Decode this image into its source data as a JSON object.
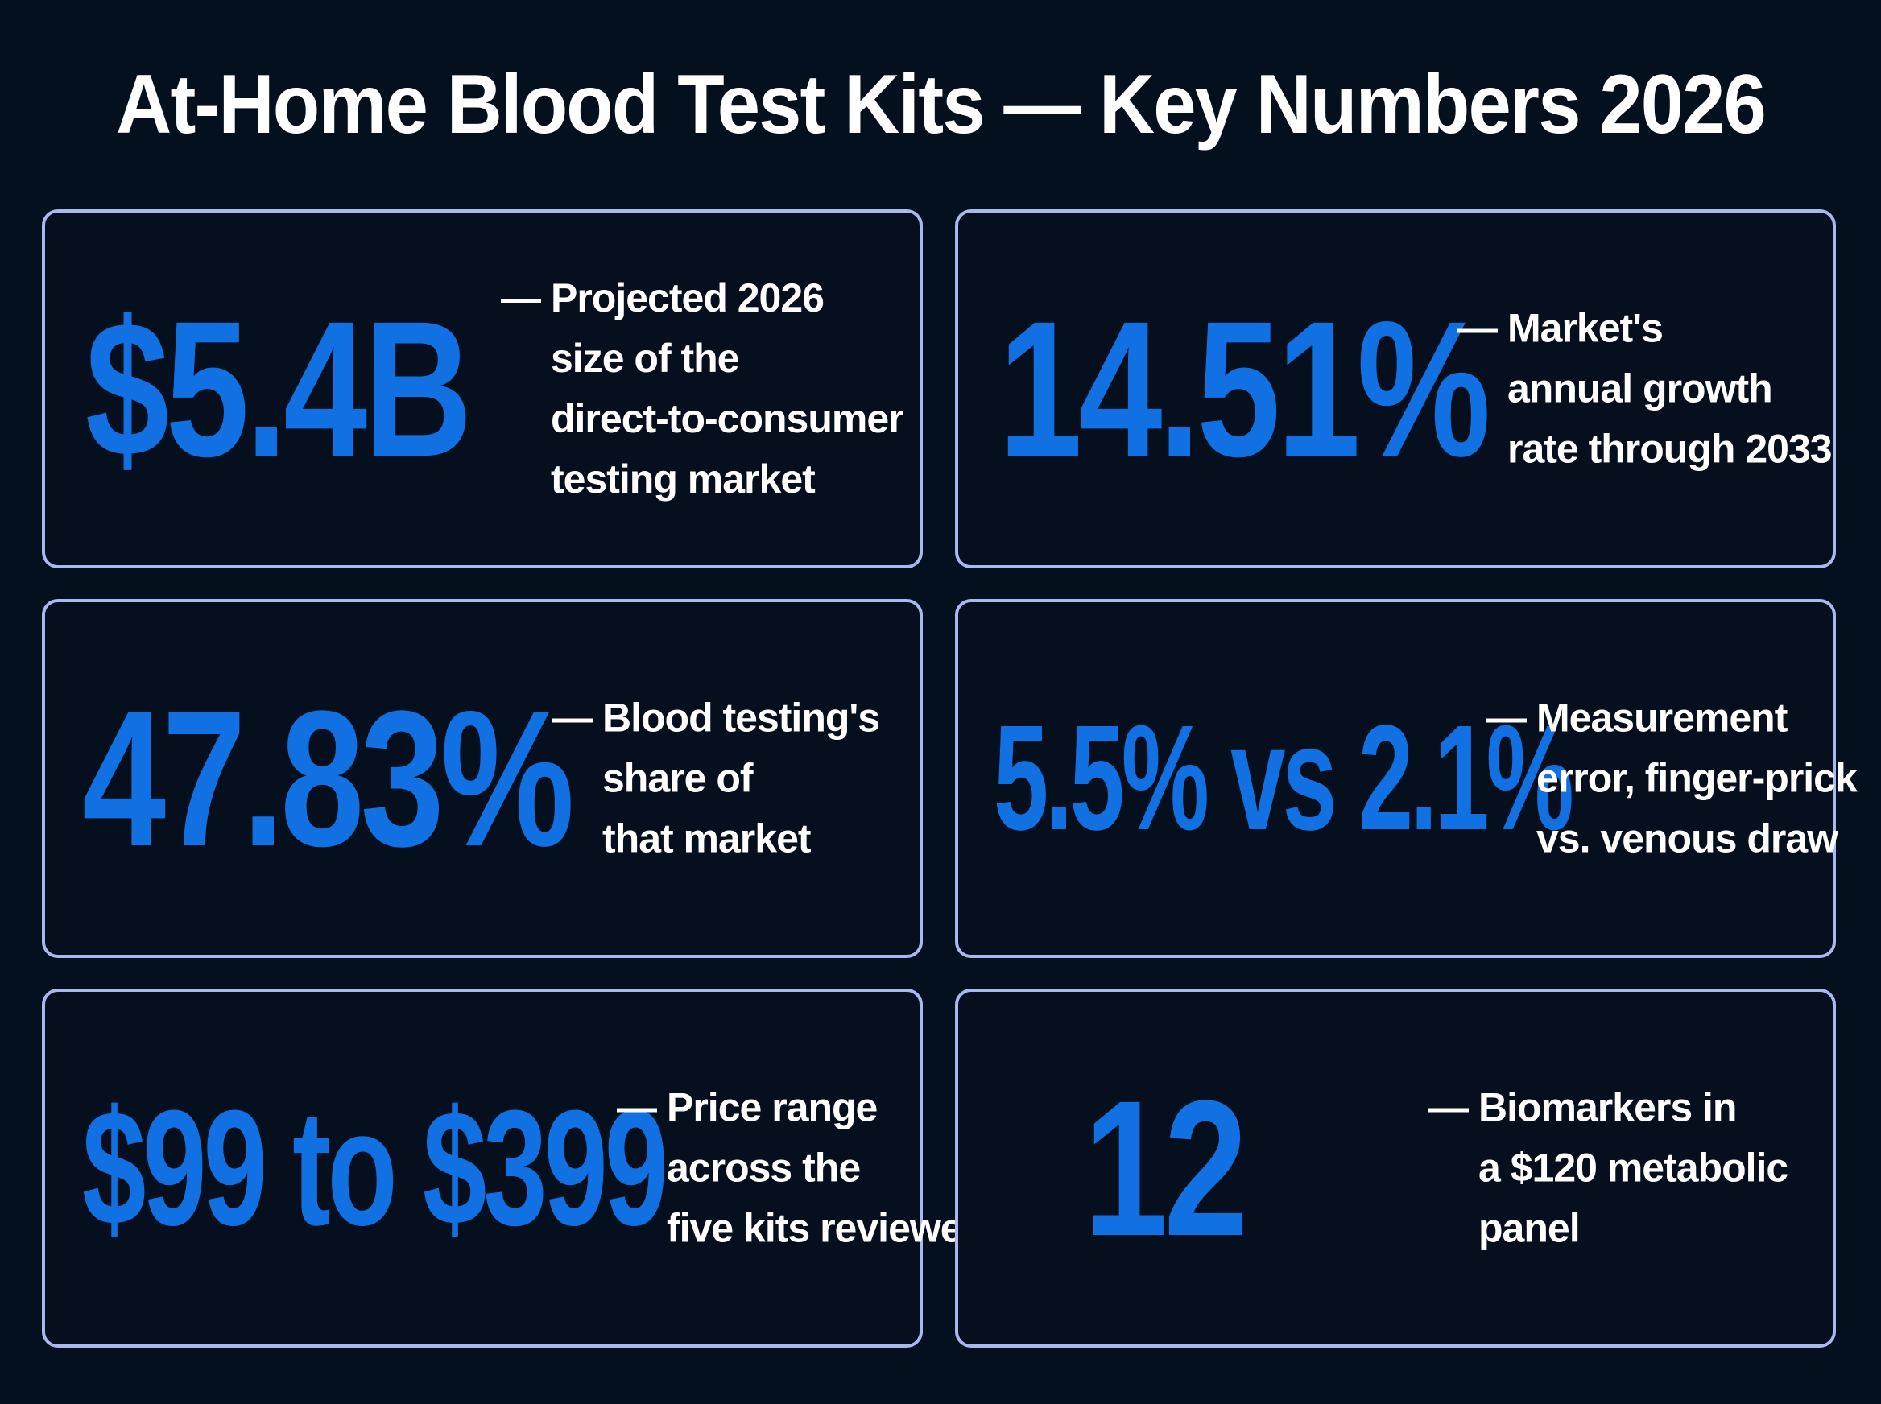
{
  "title": "At-Home Blood Test Kits — Key Numbers 2026",
  "dash": "—",
  "stats": [
    {
      "value": "$5.4B",
      "description": [
        "Projected 2026",
        "size of the",
        "direct-to-consumer",
        "testing market"
      ]
    },
    {
      "value": "14.51%",
      "description": [
        "Market's",
        "annual growth",
        "rate through 2033"
      ]
    },
    {
      "value": "47.83%",
      "description": [
        "Blood testing's",
        "share of",
        "that market"
      ]
    },
    {
      "value": "5.5% vs 2.1%",
      "description": [
        "Measurement",
        "error, finger-prick",
        "vs. venous draw"
      ]
    },
    {
      "value": "$99 to $399",
      "description": [
        "Price range",
        "across the",
        "five kits reviewed"
      ]
    },
    {
      "value": "12",
      "description": [
        "Biomarkers in",
        "a $120 metabolic",
        "panel"
      ]
    }
  ],
  "colors": {
    "background": "#05101f",
    "accent": "#1271e2",
    "card_border": "#a9b9ef",
    "text": "#ffffff"
  }
}
